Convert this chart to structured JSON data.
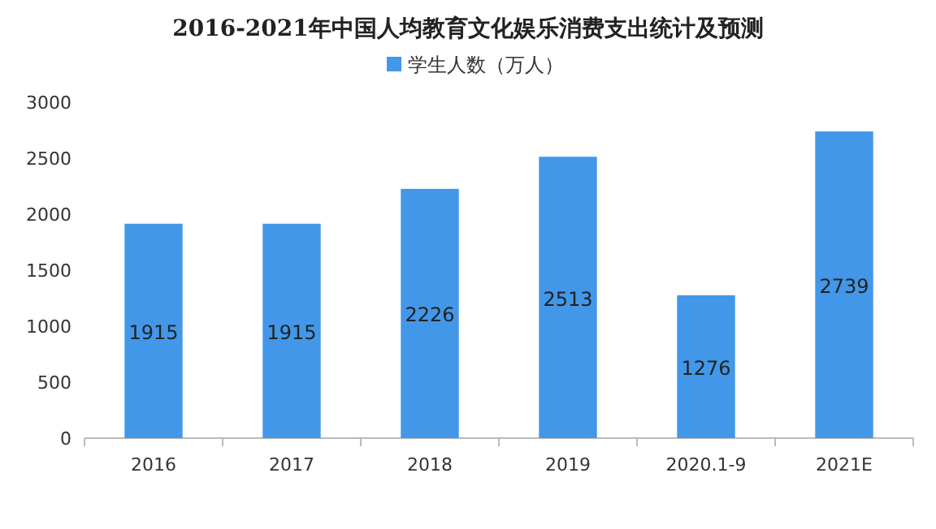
{
  "chart_data": {
    "type": "bar",
    "title": "2016-2021年中国人均教育文化娱乐消费支出统计及预测",
    "categories": [
      "2016",
      "2017",
      "2018",
      "2019",
      "2020.1-9",
      "2021E"
    ],
    "series": [
      {
        "name": "学生人数（万人）",
        "color": "#4297e8",
        "values": [
          1915,
          1915,
          2226,
          2513,
          1276,
          2739
        ]
      }
    ],
    "ylim": [
      0,
      3000
    ],
    "yticks": [
      0,
      500,
      1000,
      1500,
      2000,
      2500,
      3000
    ],
    "data_labels": true,
    "legend": "top"
  }
}
